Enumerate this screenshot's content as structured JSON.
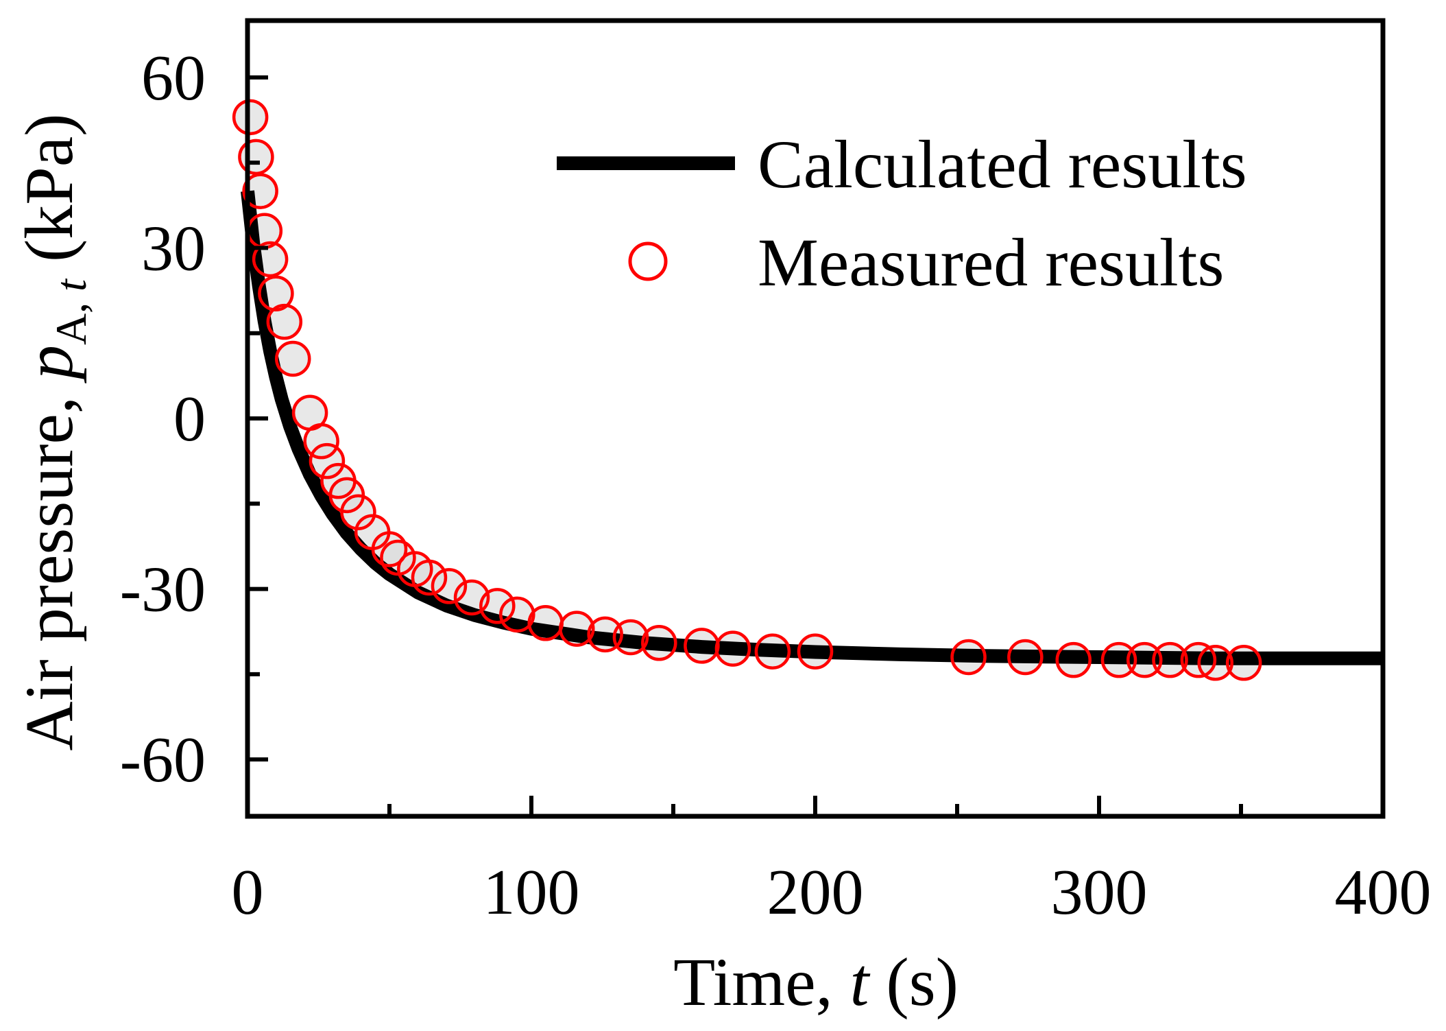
{
  "chart_data": {
    "type": "line",
    "title": "",
    "xlabel": {
      "prefix": "Time, ",
      "var": "t",
      "suffix": " (s)"
    },
    "ylabel": {
      "prefix": "Air pressure, ",
      "var": "p",
      "sub_a": "A, ",
      "sub_b": "t",
      "suffix": " (kPa)"
    },
    "xlim": [
      0,
      400
    ],
    "ylim": [
      -70,
      70
    ],
    "xticks": [
      0,
      100,
      200,
      300,
      400
    ],
    "xtick_labels": [
      "0",
      "100",
      "200",
      "300",
      "400"
    ],
    "yticks": [
      60,
      30,
      0,
      -30,
      -60
    ],
    "ytick_labels": [
      "60",
      "30",
      "0",
      "-30",
      "-60"
    ],
    "legend_position": "top-right",
    "series": [
      {
        "name": "Calculated results",
        "kind": "line",
        "color": "#000000",
        "x": [
          0,
          2,
          4,
          6,
          8,
          10,
          12,
          15,
          18,
          22,
          26,
          30,
          35,
          40,
          45,
          50,
          60,
          70,
          80,
          90,
          100,
          120,
          140,
          160,
          180,
          200,
          230,
          260,
          300,
          340,
          370,
          400
        ],
        "y": [
          40,
          30.8,
          23.4,
          17.1,
          11.8,
          7.3,
          3.4,
          -1.4,
          -5.4,
          -9.9,
          -13.6,
          -16.8,
          -20.2,
          -23.0,
          -25.4,
          -27.4,
          -30.6,
          -32.9,
          -34.6,
          -35.9,
          -37.0,
          -38.5,
          -39.5,
          -40.2,
          -40.7,
          -41.1,
          -41.5,
          -41.8,
          -42.0,
          -42.2,
          -42.2,
          -42.2
        ]
      },
      {
        "name": "Measured results",
        "kind": "scatter",
        "color": "#ff0000",
        "x": [
          1,
          3,
          4.5,
          6,
          8,
          10,
          13,
          16,
          22,
          26,
          28,
          32,
          35,
          39,
          44,
          50,
          53,
          59,
          64,
          71,
          79,
          88,
          95,
          105,
          116,
          126,
          135,
          145,
          160,
          171,
          185,
          200,
          254,
          274,
          291,
          307,
          316,
          325,
          335,
          341,
          351
        ],
        "y": [
          53,
          46,
          40,
          33,
          28,
          22,
          17,
          10.5,
          1,
          -4,
          -7.5,
          -11,
          -13.5,
          -16.5,
          -20,
          -23,
          -24.5,
          -26.5,
          -28,
          -29.5,
          -31.5,
          -33,
          -34.5,
          -36,
          -37,
          -38,
          -38.5,
          -39.5,
          -40,
          -40.5,
          -41,
          -41,
          -42,
          -42,
          -42.5,
          -42.5,
          -42.5,
          -42.5,
          -42.5,
          -43,
          -43
        ]
      }
    ]
  }
}
